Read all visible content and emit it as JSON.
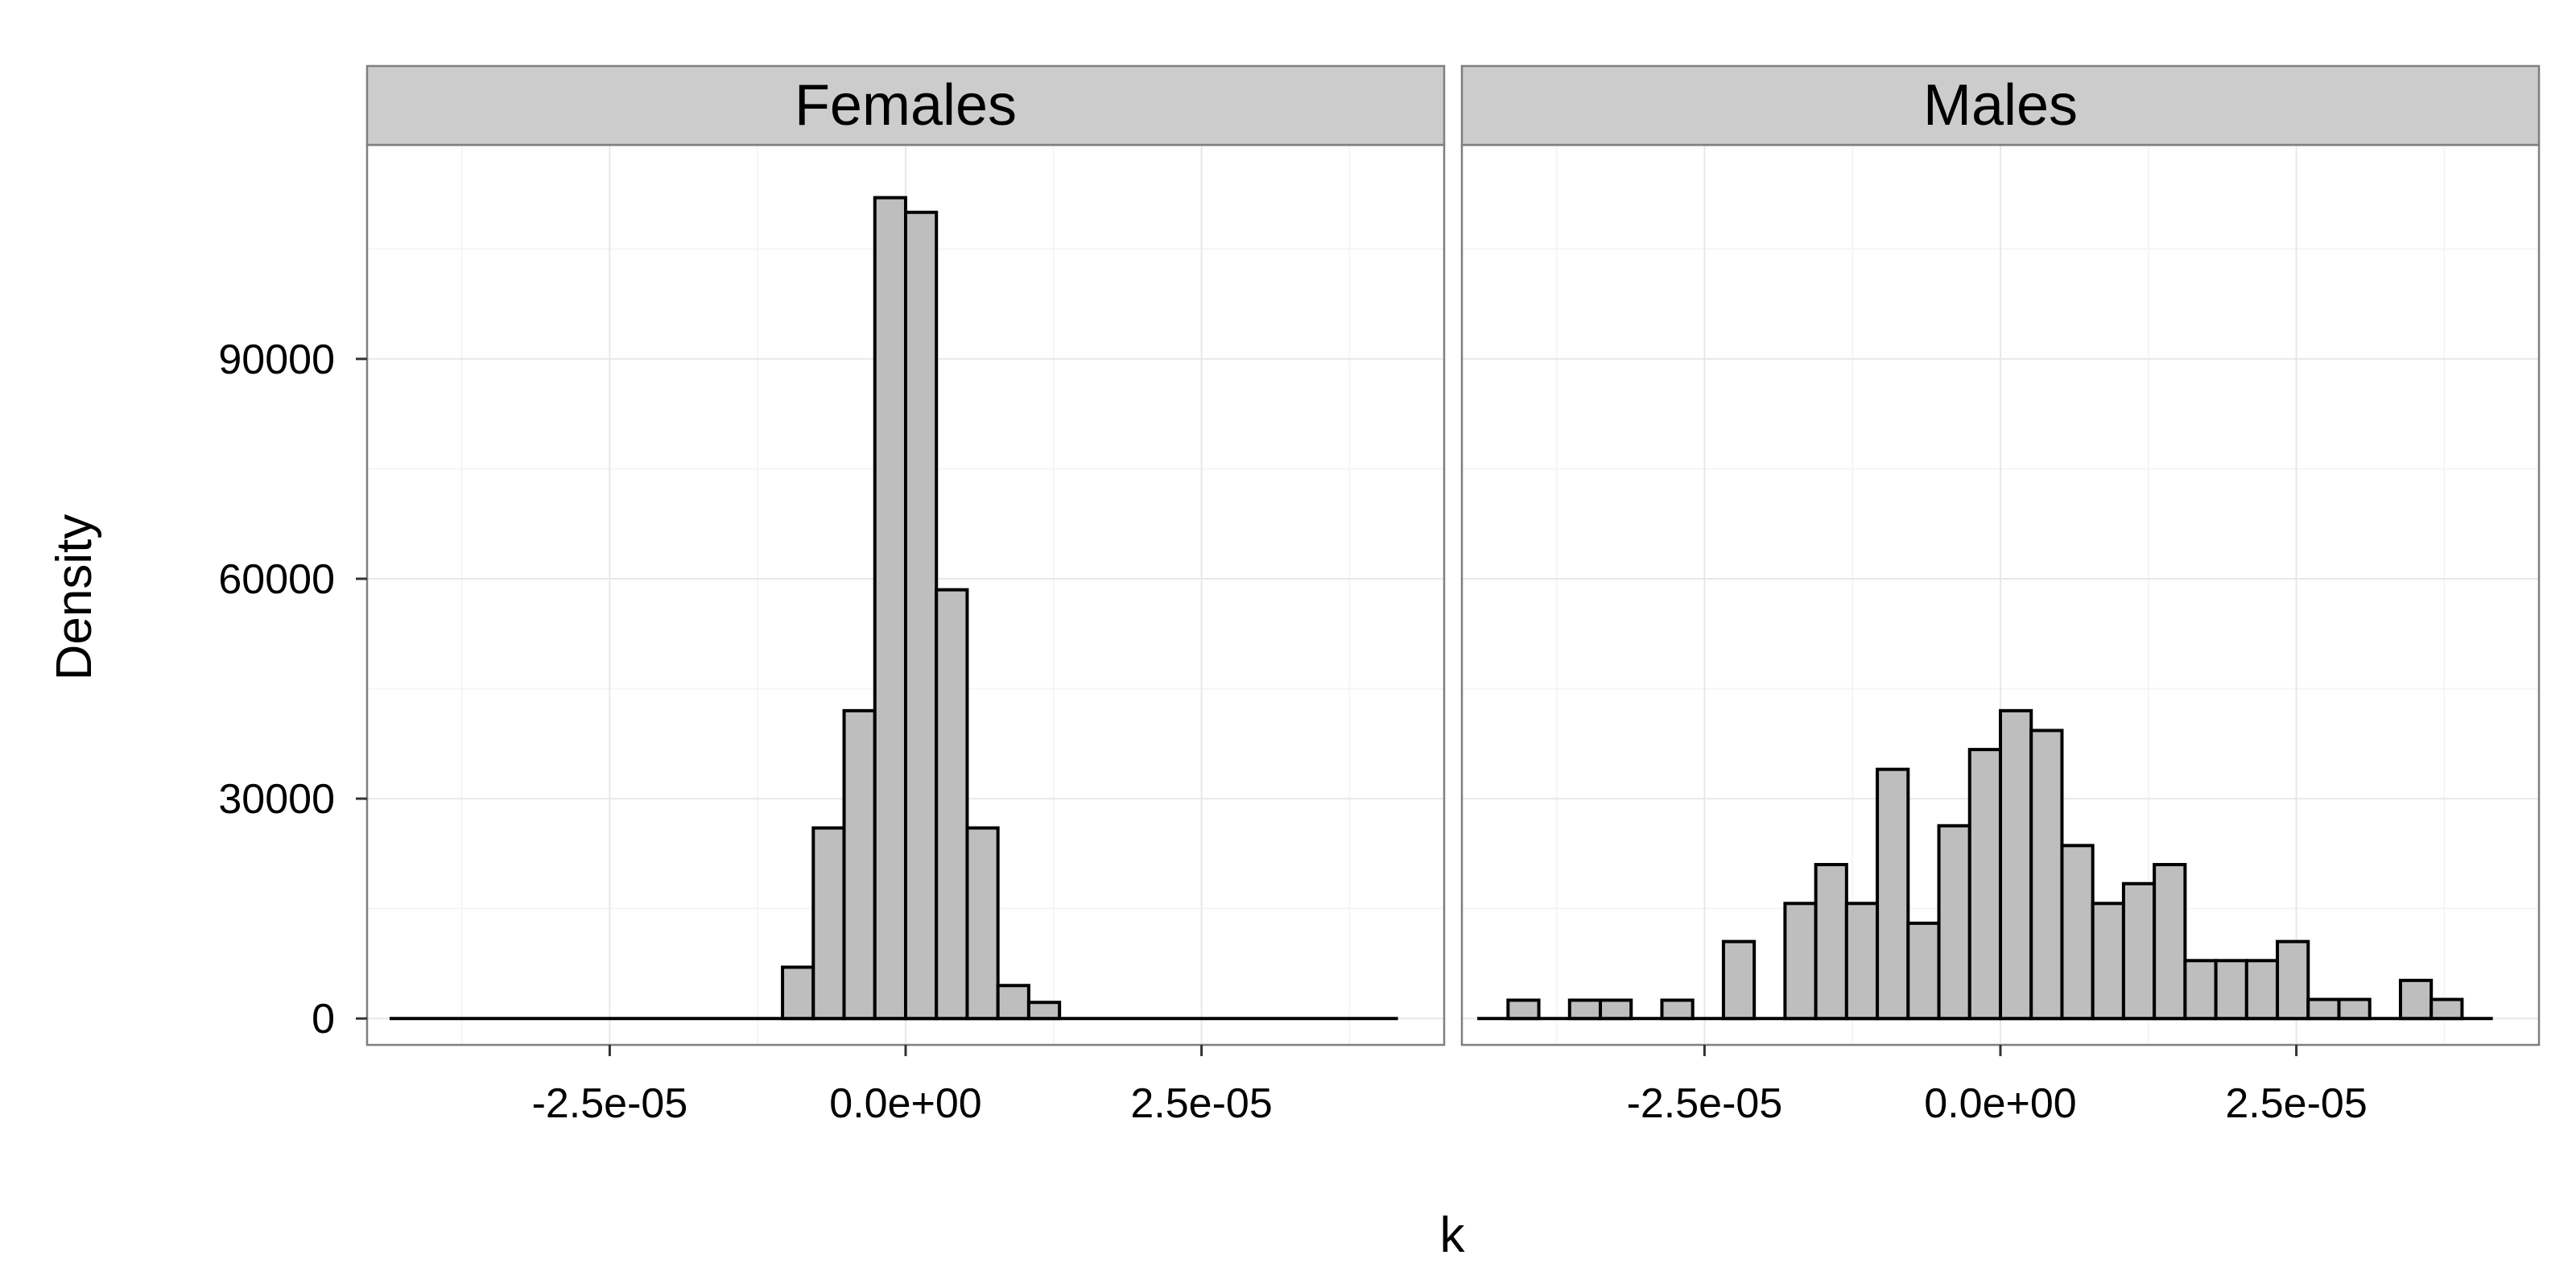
{
  "chart_data": {
    "type": "histogram",
    "xlabel": "k",
    "ylabel": "Density",
    "x_domain": [
      -4.55e-05,
      4.55e-05
    ],
    "ylim": [
      -3600,
      119200
    ],
    "x_ticks": [
      {
        "value": -2.5e-05,
        "label": "-2.5e-05"
      },
      {
        "value": 0,
        "label": "0.0e+00"
      },
      {
        "value": 2.5e-05,
        "label": "2.5e-05"
      }
    ],
    "y_ticks": [
      {
        "value": 0,
        "label": "0"
      },
      {
        "value": 30000,
        "label": "30000"
      },
      {
        "value": 60000,
        "label": "60000"
      },
      {
        "value": 90000,
        "label": "90000"
      }
    ],
    "bin_width": 2.6e-06,
    "grid": true,
    "colors": {
      "bar_fill": "#bebebe",
      "bar_stroke": "#000000",
      "panel_background": "#ffffff",
      "panel_border": "#7f7f7f",
      "strip_fill": "#cccccc",
      "grid_major": "#e8e8e8",
      "grid_minor": "#f5f5f5"
    },
    "panels": [
      {
        "name": "Females",
        "range": [
          -4.36e-05,
          4.16e-05
        ],
        "bins": [
          {
            "x0": -1.04e-05,
            "value": 7000
          },
          {
            "x0": -7.8e-06,
            "value": 26000
          },
          {
            "x0": -5.2e-06,
            "value": 42000
          },
          {
            "x0": -2.6e-06,
            "value": 112000
          },
          {
            "x0": 0.0,
            "value": 110000
          },
          {
            "x0": 2.6e-06,
            "value": 58500
          },
          {
            "x0": 5.2e-06,
            "value": 26000
          },
          {
            "x0": 7.8e-06,
            "value": 4500
          },
          {
            "x0": 1.04e-05,
            "value": 2200
          }
        ]
      },
      {
        "name": "Males",
        "range": [
          -4.42e-05,
          4.16e-05
        ],
        "bins": [
          {
            "x0": -4.16e-05,
            "value": 2500
          },
          {
            "x0": -3.9e-05,
            "value": 0
          },
          {
            "x0": -3.64e-05,
            "value": 2500
          },
          {
            "x0": -3.38e-05,
            "value": 2500
          },
          {
            "x0": -3.12e-05,
            "value": 0
          },
          {
            "x0": -2.86e-05,
            "value": 2500
          },
          {
            "x0": -2.6e-05,
            "value": 0
          },
          {
            "x0": -2.34e-05,
            "value": 10500
          },
          {
            "x0": -2.08e-05,
            "value": 0
          },
          {
            "x0": -1.82e-05,
            "value": 15700
          },
          {
            "x0": -1.56e-05,
            "value": 21000
          },
          {
            "x0": -1.3e-05,
            "value": 15700
          },
          {
            "x0": -1.04e-05,
            "value": 34000
          },
          {
            "x0": -7.8e-06,
            "value": 13000
          },
          {
            "x0": -5.2e-06,
            "value": 26300
          },
          {
            "x0": -2.6e-06,
            "value": 36700
          },
          {
            "x0": 0.0,
            "value": 42000
          },
          {
            "x0": 2.6e-06,
            "value": 39300
          },
          {
            "x0": 5.2e-06,
            "value": 23600
          },
          {
            "x0": 7.8e-06,
            "value": 15700
          },
          {
            "x0": 1.04e-05,
            "value": 18400
          },
          {
            "x0": 1.3e-05,
            "value": 21000
          },
          {
            "x0": 1.56e-05,
            "value": 7900
          },
          {
            "x0": 1.82e-05,
            "value": 7900
          },
          {
            "x0": 2.08e-05,
            "value": 7900
          },
          {
            "x0": 2.34e-05,
            "value": 10500
          },
          {
            "x0": 2.6e-05,
            "value": 2600
          },
          {
            "x0": 2.86e-05,
            "value": 2600
          },
          {
            "x0": 3.12e-05,
            "value": 0
          },
          {
            "x0": 3.38e-05,
            "value": 5200
          },
          {
            "x0": 3.64e-05,
            "value": 2600
          }
        ]
      }
    ]
  }
}
